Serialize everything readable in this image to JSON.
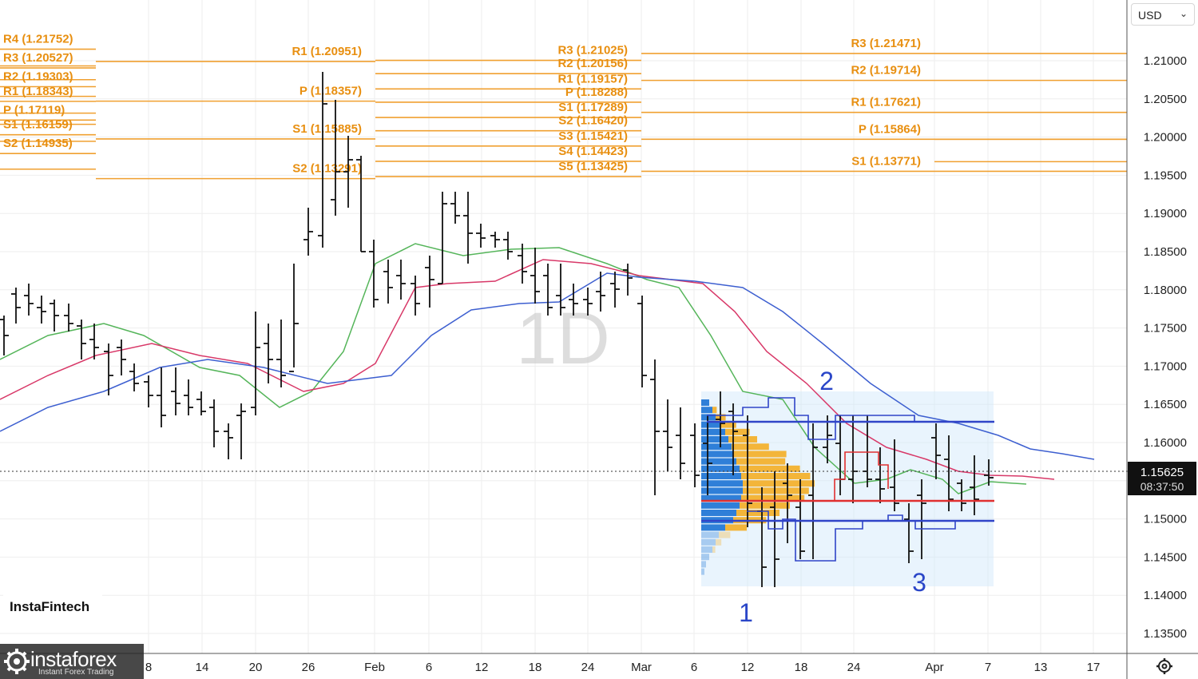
{
  "currency": {
    "selected": "USD"
  },
  "brand": {
    "label": "InstaFintech"
  },
  "watermark": {
    "name": "instaforex",
    "tagline": "Instant Forex Trading"
  },
  "icons": {
    "settings": "settings-icon",
    "dropdown": "chevron-down-icon"
  },
  "colors": {
    "pivot": "#f0a030",
    "pivot_text": "#e88f10",
    "bars": "#111111",
    "ma_fast": "#55b55a",
    "ma_mid": "#d83868",
    "ma_slow": "#3d5fd0",
    "profile_buy": "#2f7fd8",
    "profile_sell": "#f3b53a",
    "box_blue": "#3044c8",
    "box_red": "#e03030",
    "label_blue": "#2a46c8"
  },
  "chart_data": {
    "type": "ohlc",
    "symbol_interval": "1D",
    "y_ticks": [
      "1.21000",
      "1.20500",
      "1.20000",
      "1.19500",
      "1.19000",
      "1.18500",
      "1.18000",
      "1.17500",
      "1.17000",
      "1.16500",
      "1.16000",
      "1.15500",
      "1.15000",
      "1.14500",
      "1.14000",
      "1.13500"
    ],
    "x_ticks": [
      "8",
      "14",
      "20",
      "26",
      "Feb",
      "6",
      "12",
      "18",
      "24",
      "Mar",
      "6",
      "12",
      "18",
      "24",
      "Apr",
      "7",
      "13",
      "17"
    ],
    "last_price": {
      "value": "1.15625",
      "countdown": "08:37:50"
    },
    "pivot_levels": [
      {
        "period": "dec",
        "label": "R4 (1.21752)",
        "value": 1.21752
      },
      {
        "period": "dec",
        "label": "R3 (1.20527)",
        "value": 1.20527
      },
      {
        "period": "dec",
        "label": "R2 (1.19303)",
        "value": 1.19303
      },
      {
        "period": "dec",
        "label": "R1 (1.18343)",
        "value": 1.18343
      },
      {
        "period": "dec",
        "label": "P (1.17119)",
        "value": 1.17119
      },
      {
        "period": "dec",
        "label": "S1 (1.16159)",
        "value": 1.16159
      },
      {
        "period": "dec",
        "label": "S2 (1.14935)",
        "value": 1.14935
      },
      {
        "period": "jan",
        "label": "R1 (1.20951)",
        "value": 1.20951
      },
      {
        "period": "jan",
        "label": "P (1.18357)",
        "value": 1.18357
      },
      {
        "period": "jan",
        "label": "S1 (1.15885)",
        "value": 1.15885
      },
      {
        "period": "jan",
        "label": "S2 (1.13291)",
        "value": 1.13291
      },
      {
        "period": "feb",
        "label": "R3 (1.21025)",
        "value": 1.21025
      },
      {
        "period": "feb",
        "label": "R2 (1.20156)",
        "value": 1.20156
      },
      {
        "period": "feb",
        "label": "R1 (1.19157)",
        "value": 1.19157
      },
      {
        "period": "feb",
        "label": "P (1.18288)",
        "value": 1.18288
      },
      {
        "period": "feb",
        "label": "S1 (1.17289)",
        "value": 1.17289
      },
      {
        "period": "feb",
        "label": "S2 (1.16420)",
        "value": 1.1642
      },
      {
        "period": "feb",
        "label": "S3 (1.15421)",
        "value": 1.15421
      },
      {
        "period": "feb",
        "label": "S4 (1.14423)",
        "value": 1.14423
      },
      {
        "period": "feb",
        "label": "S5 (1.13425)",
        "value": 1.13425
      },
      {
        "period": "mar",
        "label": "R3 (1.21471)",
        "value": 1.21471
      },
      {
        "period": "mar",
        "label": "R2 (1.19714)",
        "value": 1.19714
      },
      {
        "period": "mar",
        "label": "R1 (1.17621)",
        "value": 1.17621
      },
      {
        "period": "mar",
        "label": "P (1.15864)",
        "value": 1.15864
      },
      {
        "period": "mar",
        "label": "S1 (1.13771)",
        "value": 1.13771
      }
    ],
    "annotations": [
      "1",
      "2",
      "3"
    ]
  }
}
